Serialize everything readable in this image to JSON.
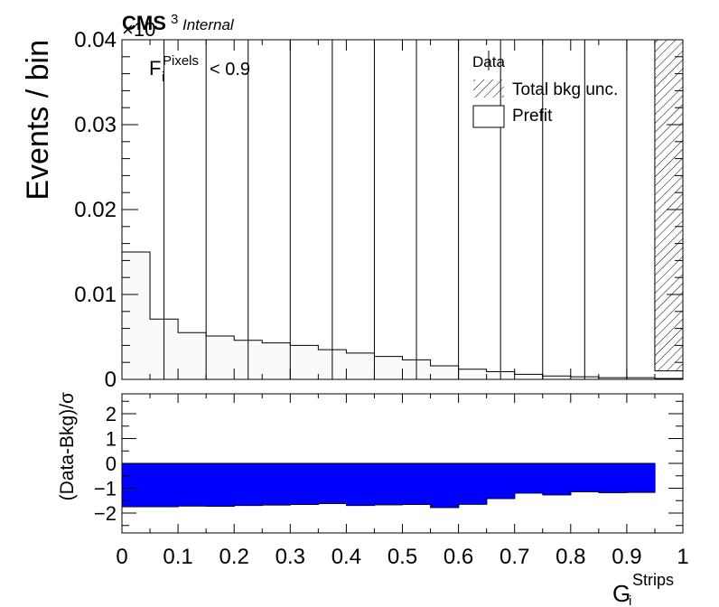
{
  "header": {
    "cms": "CMS",
    "internal": "Internal",
    "exponent_base": "×10",
    "exponent_power": "3"
  },
  "cut_label": {
    "var": "F",
    "sub": "i",
    "sup": "Pixels",
    "rest": "< 0.9"
  },
  "legend": {
    "data": "Data",
    "unc": "Total bkg unc.",
    "prefit": "Prefit"
  },
  "chart_data": [
    {
      "type": "bar",
      "panel": "main",
      "ylabel": "Events / bin",
      "ylim": [
        0,
        0.04
      ],
      "yticks": [
        "0",
        "0.01",
        "0.02",
        "0.03",
        "0.04"
      ],
      "xlim": [
        0,
        1
      ],
      "bin_edges": [
        0,
        0.05,
        0.1,
        0.15,
        0.2,
        0.25,
        0.3,
        0.35,
        0.4,
        0.45,
        0.5,
        0.55,
        0.6,
        0.65,
        0.7,
        0.75,
        0.8,
        0.85,
        0.9,
        0.95,
        1.0
      ],
      "prefit_values": [
        0.015,
        0.0071,
        0.0055,
        0.0051,
        0.0046,
        0.0043,
        0.004,
        0.0035,
        0.0031,
        0.0027,
        0.0023,
        0.0016,
        0.0012,
        0.0009,
        0.0006,
        0.0004,
        0.0003,
        0.0002,
        0.0002,
        0.0001
      ],
      "data_x": [
        0.075,
        0.15,
        0.225,
        0.3,
        0.375,
        0.45,
        0.525,
        0.6,
        0.675,
        0.75,
        0.825,
        0.9
      ],
      "hatched_bin": [
        0.95,
        1.0
      ],
      "hatch_low": 0.001
    },
    {
      "type": "bar",
      "panel": "ratio",
      "ylabel": "(Data-Bkg)/σ",
      "xlabel_var": "G",
      "xlabel_sub": "i",
      "xlabel_sup": "Strips",
      "ylim": [
        -2.8,
        2.8
      ],
      "yticks": [
        "2",
        "1",
        "0",
        "−1",
        "−2"
      ],
      "xticks": [
        "0",
        "0.1",
        "0.2",
        "0.3",
        "0.4",
        "0.5",
        "0.6",
        "0.7",
        "0.8",
        "0.9",
        "1"
      ],
      "bin_edges": [
        0,
        0.05,
        0.1,
        0.15,
        0.2,
        0.25,
        0.3,
        0.35,
        0.4,
        0.45,
        0.5,
        0.55,
        0.6,
        0.65,
        0.7,
        0.75,
        0.8,
        0.85,
        0.9,
        0.95
      ],
      "values": [
        -1.75,
        -1.75,
        -1.72,
        -1.73,
        -1.7,
        -1.68,
        -1.66,
        -1.62,
        -1.7,
        -1.67,
        -1.66,
        -1.78,
        -1.65,
        -1.42,
        -1.2,
        -1.27,
        -1.15,
        -1.18,
        -1.17
      ],
      "color": "#0000ff"
    }
  ]
}
